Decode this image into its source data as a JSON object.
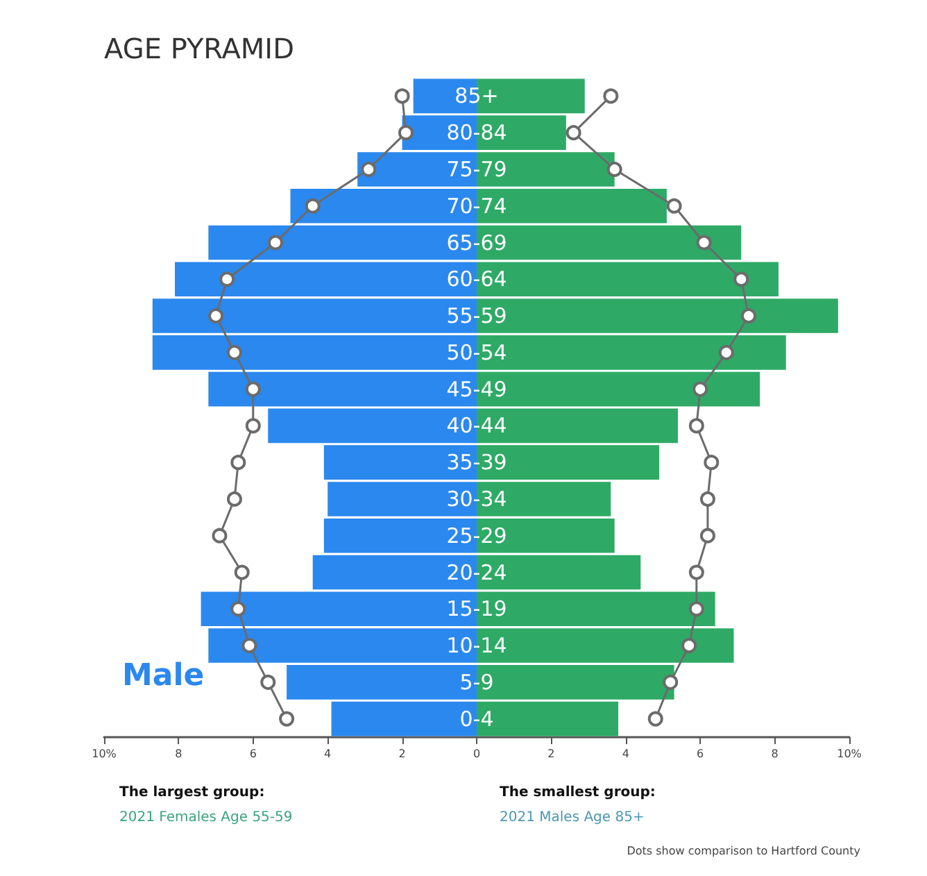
{
  "chart_data": {
    "type": "bar",
    "orientation": "horizontal",
    "title": "AGE PYRAMID",
    "categories": [
      "85+",
      "80-84",
      "75-79",
      "70-74",
      "65-69",
      "60-64",
      "55-59",
      "50-54",
      "45-49",
      "40-44",
      "35-39",
      "30-34",
      "25-29",
      "20-24",
      "15-19",
      "10-14",
      "5-9",
      "0-4"
    ],
    "series": [
      {
        "name": "Male",
        "color": "#2b88ee",
        "values": [
          -1.7,
          -2.0,
          -3.2,
          -5.0,
          -7.2,
          -8.1,
          -8.7,
          -8.7,
          -7.2,
          -5.6,
          -4.1,
          -4.0,
          -4.1,
          -4.4,
          -7.4,
          -7.2,
          -5.1,
          -3.9
        ]
      },
      {
        "color": "#2eaa66",
        "values": [
          2.9,
          2.4,
          3.7,
          5.1,
          7.1,
          8.1,
          9.7,
          8.3,
          7.6,
          5.4,
          4.9,
          3.6,
          3.7,
          4.4,
          6.4,
          6.9,
          5.3,
          3.8
        ]
      },
      {
        "type": "line",
        "color": "#6b6b6b",
        "values": [
          -2.0,
          -1.9,
          -2.9,
          -4.4,
          -5.4,
          -6.7,
          -7.0,
          -6.5,
          -6.0,
          -6.0,
          -6.4,
          -6.5,
          -6.9,
          -6.3,
          -6.4,
          -6.1,
          -5.6,
          -5.1
        ]
      },
      {
        "type": "line",
        "color": "#6b6b6b",
        "values": [
          3.6,
          2.6,
          3.7,
          5.3,
          6.1,
          7.1,
          7.3,
          6.7,
          6.0,
          5.9,
          6.3,
          6.2,
          6.2,
          5.9,
          5.9,
          5.7,
          5.2,
          4.8
        ]
      }
    ],
    "xlim": [
      -10,
      10
    ],
    "xticks": [
      {
        "value": -10,
        "label": "10%"
      },
      {
        "value": -8,
        "label": "8"
      },
      {
        "value": -6,
        "label": "6"
      },
      {
        "value": -4,
        "label": "4"
      },
      {
        "value": -2,
        "label": "2"
      },
      {
        "value": 0,
        "label": "0"
      },
      {
        "value": 2,
        "label": "2"
      },
      {
        "value": 4,
        "label": "4"
      },
      {
        "value": 6,
        "label": "6"
      },
      {
        "value": 8,
        "label": "8"
      },
      {
        "value": 10,
        "label": "10%"
      }
    ],
    "annotations": [
      "The largest group:",
      "2021 Females Age 55-59",
      "The smallest group:",
      "2021 Males Age 85+",
      "Dots show comparison to Hartford County"
    ],
    "marker": "circle",
    "line_style": "solid",
    "stacked": true,
    "grid": false,
    "legend": "bottom left"
  }
}
